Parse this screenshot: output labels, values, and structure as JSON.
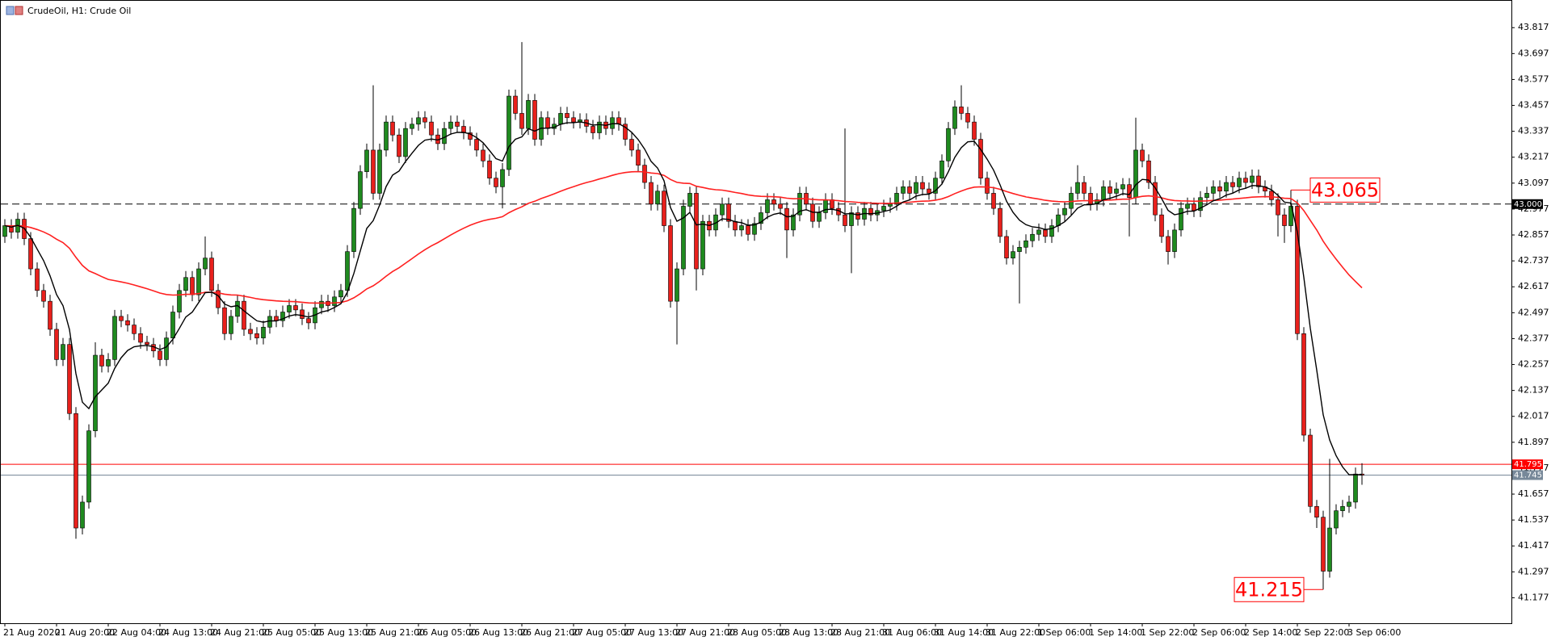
{
  "chart_data": {
    "type": "candlestick",
    "title": "CrudeOil, H1:  Crude Oil",
    "categories": [
      "21 Aug 2020",
      null,
      null,
      null,
      null,
      null,
      null,
      null,
      "21 Aug 20:00",
      null,
      null,
      null,
      null,
      null,
      null,
      null,
      "22 Aug 04:00",
      null,
      null,
      null,
      null,
      null,
      null,
      null,
      "24 Aug 13:00",
      null,
      null,
      null,
      null,
      null,
      null,
      null,
      "24 Aug 21:00",
      null,
      null,
      null,
      null,
      null,
      null,
      null,
      "25 Aug 05:00",
      null,
      null,
      null,
      null,
      null,
      null,
      null,
      "25 Aug 13:00",
      null,
      null,
      null,
      null,
      null,
      null,
      null,
      "25 Aug 21:00",
      null,
      null,
      null,
      null,
      null,
      null,
      null,
      "26 Aug 05:00",
      null,
      null,
      null,
      null,
      null,
      null,
      null,
      "26 Aug 13:00",
      null,
      null,
      null,
      null,
      null,
      null,
      null,
      "26 Aug 21:00",
      null,
      null,
      null,
      null,
      null,
      null,
      null,
      "27 Aug 05:00",
      null,
      null,
      null,
      null,
      null,
      null,
      null,
      "27 Aug 13:00",
      null,
      null,
      null,
      null,
      null,
      null,
      null,
      "27 Aug 21:00",
      null,
      null,
      null,
      null,
      null,
      null,
      null,
      "28 Aug 05:00",
      null,
      null,
      null,
      null,
      null,
      null,
      null,
      "28 Aug 13:00",
      null,
      null,
      null,
      null,
      null,
      null,
      null,
      "28 Aug 21:00",
      null,
      null,
      null,
      null,
      null,
      null,
      null,
      "31 Aug 06:00",
      null,
      null,
      null,
      null,
      null,
      null,
      null,
      "31 Aug 14:00",
      null,
      null,
      null,
      null,
      null,
      null,
      null,
      "31 Aug 22:00",
      null,
      null,
      null,
      null,
      null,
      null,
      null,
      "1 Sep 06:00",
      null,
      null,
      null,
      null,
      null,
      null,
      null,
      "1 Sep 14:00",
      null,
      null,
      null,
      null,
      null,
      null,
      null,
      "1 Sep 22:00",
      null,
      null,
      null,
      null,
      null,
      null,
      null,
      "2 Sep 06:00",
      null,
      null,
      null,
      null,
      null,
      null,
      null,
      "2 Sep 14:00",
      null,
      null,
      null,
      null,
      null,
      null,
      null,
      "2 Sep 22:00",
      null,
      null,
      null,
      null,
      null,
      null,
      null,
      "3 Sep 06:00",
      null,
      null
    ],
    "open": [
      42.85,
      42.9,
      42.87,
      42.93,
      42.84,
      42.7,
      42.6,
      42.55,
      42.42,
      42.28,
      42.35,
      42.03,
      41.5,
      41.62,
      41.95,
      42.3,
      42.25,
      42.28,
      42.48,
      42.46,
      42.44,
      42.4,
      42.36,
      42.35,
      42.32,
      42.28,
      42.38,
      42.5,
      42.6,
      42.66,
      42.58,
      42.7,
      42.75,
      42.6,
      42.52,
      42.4,
      42.48,
      42.55,
      42.42,
      42.4,
      42.38,
      42.43,
      42.48,
      42.46,
      42.5,
      42.53,
      42.51,
      42.47,
      42.45,
      42.52,
      42.55,
      42.53,
      42.57,
      42.6,
      42.78,
      42.98,
      43.15,
      43.25,
      43.05,
      43.25,
      43.38,
      43.32,
      43.22,
      43.35,
      43.37,
      43.4,
      43.38,
      43.32,
      43.28,
      43.35,
      43.38,
      43.36,
      43.33,
      43.3,
      43.25,
      43.2,
      43.12,
      43.08,
      43.16,
      43.5,
      43.42,
      43.35,
      43.48,
      43.3,
      43.4,
      43.35,
      43.37,
      43.42,
      43.4,
      43.38,
      43.39,
      43.36,
      43.33,
      43.38,
      43.35,
      43.4,
      43.37,
      43.3,
      43.25,
      43.18,
      43.1,
      43.0,
      43.06,
      42.9,
      42.55,
      42.7,
      42.99,
      43.05,
      42.7,
      42.92,
      42.88,
      42.95,
      43.0,
      42.92,
      42.88,
      42.9,
      42.86,
      42.91,
      42.96,
      43.02,
      43.0,
      42.98,
      42.88,
      42.95,
      43.05,
      43.0,
      42.92,
      42.96,
      43.02,
      42.98,
      42.95,
      42.9,
      42.96,
      42.93,
      42.98,
      42.95,
      42.97,
      42.99,
      43.0,
      43.05,
      43.08,
      43.05,
      43.1,
      43.07,
      43.05,
      43.12,
      43.2,
      43.35,
      43.45,
      43.42,
      43.38,
      43.3,
      43.12,
      43.05,
      42.98,
      42.85,
      42.75,
      42.78,
      42.8,
      42.83,
      42.86,
      42.88,
      42.85,
      42.9,
      42.95,
      42.98,
      43.05,
      43.1,
      43.05,
      43.0,
      43.02,
      43.08,
      43.05,
      43.07,
      43.09,
      43.03,
      43.25,
      43.2,
      43.1,
      42.95,
      42.85,
      42.78,
      42.88,
      42.98,
      43.0,
      42.97,
      43.03,
      43.05,
      43.08,
      43.06,
      43.1,
      43.08,
      43.12,
      43.1,
      43.13,
      43.08,
      43.06,
      43.02,
      42.95,
      42.9,
      42.99,
      42.4,
      41.93,
      41.6,
      41.55,
      41.3,
      41.5,
      41.58,
      41.6,
      41.62,
      41.75
    ],
    "high": [
      42.93,
      42.93,
      42.96,
      42.96,
      42.87,
      42.73,
      42.63,
      42.58,
      42.45,
      42.38,
      42.38,
      42.06,
      41.65,
      41.98,
      42.36,
      42.33,
      42.31,
      42.51,
      42.51,
      42.49,
      42.47,
      42.43,
      42.39,
      42.38,
      42.35,
      42.41,
      42.53,
      42.63,
      42.69,
      42.69,
      42.73,
      42.85,
      42.78,
      42.63,
      42.55,
      42.51,
      42.58,
      42.58,
      42.45,
      42.43,
      42.46,
      42.51,
      42.51,
      42.53,
      42.56,
      42.56,
      42.54,
      42.5,
      42.55,
      42.58,
      42.58,
      42.6,
      42.63,
      42.81,
      43.01,
      43.18,
      43.28,
      43.55,
      43.28,
      43.41,
      43.41,
      43.35,
      43.38,
      43.4,
      43.43,
      43.43,
      43.41,
      43.35,
      43.38,
      43.41,
      43.41,
      43.39,
      43.36,
      43.33,
      43.28,
      43.23,
      43.15,
      43.19,
      43.53,
      43.53,
      43.75,
      43.51,
      43.51,
      43.43,
      43.43,
      43.4,
      43.45,
      43.45,
      43.43,
      43.42,
      43.42,
      43.39,
      43.41,
      43.41,
      43.43,
      43.43,
      43.4,
      43.33,
      43.28,
      43.21,
      43.13,
      43.09,
      43.09,
      42.93,
      42.73,
      43.02,
      43.08,
      43.08,
      42.95,
      42.95,
      42.98,
      43.03,
      43.03,
      42.95,
      42.93,
      42.93,
      42.94,
      42.99,
      43.05,
      43.05,
      43.03,
      43.01,
      42.98,
      43.08,
      43.08,
      43.03,
      42.99,
      43.05,
      43.05,
      43.01,
      43.35,
      42.99,
      42.99,
      43.01,
      43.01,
      43.0,
      43.02,
      43.03,
      43.08,
      43.11,
      43.11,
      43.13,
      43.13,
      43.1,
      43.15,
      43.23,
      43.38,
      43.48,
      43.55,
      43.45,
      43.41,
      43.33,
      43.15,
      43.08,
      43.01,
      42.88,
      42.81,
      42.83,
      42.86,
      42.89,
      42.91,
      42.91,
      42.93,
      42.98,
      43.01,
      43.08,
      43.18,
      43.13,
      43.08,
      43.05,
      43.11,
      43.11,
      43.1,
      43.12,
      43.12,
      43.4,
      43.28,
      43.23,
      43.13,
      42.98,
      42.88,
      42.91,
      43.01,
      43.03,
      43.03,
      43.06,
      43.08,
      43.11,
      43.11,
      43.13,
      43.13,
      43.15,
      43.15,
      43.16,
      43.16,
      43.11,
      43.09,
      43.05,
      42.98,
      43.065,
      43.02,
      42.43,
      41.96,
      41.63,
      41.58,
      41.82,
      41.61,
      41.63,
      41.65,
      41.78,
      41.8
    ],
    "low": [
      42.82,
      42.84,
      42.84,
      42.81,
      42.67,
      42.57,
      42.52,
      42.39,
      42.25,
      42.25,
      42.0,
      41.45,
      41.47,
      41.59,
      41.92,
      42.22,
      42.22,
      42.25,
      42.43,
      42.41,
      42.37,
      42.33,
      42.32,
      42.29,
      42.25,
      42.25,
      42.35,
      42.47,
      42.57,
      42.55,
      42.55,
      42.67,
      42.57,
      42.49,
      42.37,
      42.37,
      42.45,
      42.39,
      42.37,
      42.35,
      42.35,
      42.4,
      42.43,
      42.43,
      42.47,
      42.48,
      42.44,
      42.42,
      42.42,
      42.49,
      42.5,
      42.5,
      42.54,
      42.57,
      42.75,
      42.95,
      43.12,
      43.02,
      43.02,
      43.22,
      43.29,
      43.19,
      43.19,
      43.32,
      43.34,
      43.35,
      43.29,
      43.25,
      43.25,
      43.32,
      43.33,
      43.3,
      43.27,
      43.22,
      43.17,
      43.09,
      43.05,
      42.98,
      43.13,
      43.39,
      43.32,
      43.32,
      43.27,
      43.27,
      43.32,
      43.32,
      43.34,
      43.37,
      43.35,
      43.35,
      43.33,
      43.3,
      43.3,
      43.32,
      43.32,
      43.34,
      43.27,
      43.22,
      43.15,
      43.07,
      42.97,
      42.97,
      42.87,
      42.52,
      42.35,
      42.67,
      42.96,
      42.6,
      42.67,
      42.85,
      42.85,
      42.92,
      42.89,
      42.85,
      42.85,
      42.83,
      42.83,
      42.88,
      42.93,
      42.97,
      42.95,
      42.75,
      42.85,
      42.92,
      42.97,
      42.89,
      42.89,
      42.93,
      42.95,
      42.92,
      42.87,
      42.68,
      42.9,
      42.9,
      42.92,
      42.92,
      42.94,
      42.96,
      42.97,
      43.02,
      43.02,
      43.02,
      43.04,
      43.02,
      43.02,
      43.09,
      43.17,
      43.32,
      43.39,
      43.35,
      43.27,
      43.09,
      43.02,
      42.95,
      42.82,
      42.72,
      42.72,
      42.54,
      42.77,
      42.8,
      42.83,
      42.82,
      42.82,
      42.87,
      42.92,
      42.95,
      43.02,
      43.02,
      42.97,
      42.97,
      42.99,
      43.02,
      43.02,
      43.04,
      42.85,
      43.0,
      43.17,
      43.07,
      42.92,
      42.82,
      42.72,
      42.75,
      42.85,
      42.95,
      42.94,
      42.94,
      43.0,
      43.02,
      43.03,
      43.03,
      43.05,
      43.05,
      43.07,
      43.07,
      43.05,
      43.03,
      42.99,
      42.85,
      42.82,
      42.87,
      42.37,
      41.9,
      41.57,
      41.5,
      41.215,
      41.27,
      41.47,
      41.55,
      41.57,
      41.59,
      41.7
    ],
    "close": [
      42.9,
      42.87,
      42.93,
      42.84,
      42.7,
      42.6,
      42.55,
      42.42,
      42.28,
      42.35,
      42.03,
      41.5,
      41.62,
      41.95,
      42.3,
      42.25,
      42.28,
      42.48,
      42.46,
      42.44,
      42.4,
      42.36,
      42.35,
      42.32,
      42.28,
      42.38,
      42.5,
      42.6,
      42.66,
      42.58,
      42.7,
      42.75,
      42.6,
      42.52,
      42.4,
      42.48,
      42.55,
      42.42,
      42.4,
      42.38,
      42.43,
      42.48,
      42.46,
      42.5,
      42.53,
      42.51,
      42.47,
      42.45,
      42.52,
      42.55,
      42.53,
      42.57,
      42.6,
      42.78,
      42.98,
      43.15,
      43.25,
      43.05,
      43.25,
      43.38,
      43.32,
      43.22,
      43.35,
      43.37,
      43.4,
      43.38,
      43.32,
      43.28,
      43.35,
      43.38,
      43.36,
      43.33,
      43.3,
      43.25,
      43.2,
      43.12,
      43.08,
      43.16,
      43.5,
      43.42,
      43.35,
      43.48,
      43.3,
      43.4,
      43.35,
      43.37,
      43.42,
      43.4,
      43.38,
      43.39,
      43.36,
      43.33,
      43.38,
      43.35,
      43.4,
      43.37,
      43.3,
      43.25,
      43.18,
      43.1,
      43.0,
      43.06,
      42.9,
      42.55,
      42.7,
      42.99,
      43.05,
      42.7,
      42.92,
      42.88,
      42.95,
      43.0,
      42.92,
      42.88,
      42.9,
      42.86,
      42.91,
      42.96,
      43.02,
      43.0,
      42.98,
      42.88,
      42.95,
      43.05,
      43.0,
      42.92,
      42.96,
      43.02,
      42.98,
      42.95,
      42.9,
      42.96,
      42.93,
      42.98,
      42.95,
      42.97,
      42.99,
      43.0,
      43.05,
      43.08,
      43.05,
      43.1,
      43.07,
      43.05,
      43.12,
      43.2,
      43.35,
      43.45,
      43.42,
      43.38,
      43.3,
      43.12,
      43.05,
      42.98,
      42.85,
      42.75,
      42.78,
      42.8,
      42.83,
      42.86,
      42.88,
      42.85,
      42.9,
      42.95,
      42.98,
      43.05,
      43.1,
      43.05,
      43.0,
      43.02,
      43.08,
      43.05,
      43.07,
      43.09,
      43.03,
      43.25,
      43.2,
      43.1,
      42.95,
      42.85,
      42.78,
      42.88,
      42.98,
      43.0,
      42.97,
      43.03,
      43.05,
      43.08,
      43.06,
      43.1,
      43.08,
      43.12,
      43.1,
      43.13,
      43.08,
      43.06,
      43.02,
      42.95,
      42.9,
      42.99,
      42.4,
      41.93,
      41.6,
      41.55,
      41.3,
      41.5,
      41.58,
      41.6,
      41.62,
      41.75,
      41.745
    ],
    "up_color": "#1f8a1f",
    "down_color": "#e8201c",
    "ylim": [
      41.059,
      43.945
    ],
    "yticks": [
      43.817,
      43.697,
      43.577,
      43.457,
      43.337,
      43.217,
      43.097,
      42.977,
      42.857,
      42.737,
      42.617,
      42.497,
      42.377,
      42.257,
      42.137,
      42.017,
      41.897,
      41.777,
      41.657,
      41.537,
      41.417,
      41.297,
      41.177
    ],
    "hlines": [
      {
        "value": 43,
        "label": "43.000",
        "color": "#000000",
        "dashed": true
      },
      {
        "value": 41.795,
        "label": "41.795",
        "color": "#ff0000",
        "dashed": false
      },
      {
        "value": 41.745,
        "label": "41.745",
        "color": "#778899",
        "dashed": false
      }
    ],
    "annotations": [
      43.065,
      41.215
    ]
  }
}
